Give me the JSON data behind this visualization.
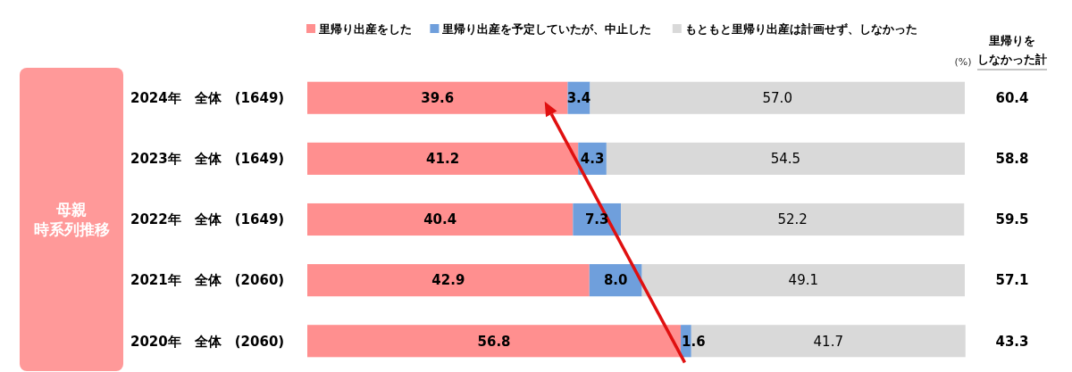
{
  "chart_data": {
    "type": "bar",
    "orientation": "horizontal",
    "stacked": true,
    "legend": "top",
    "tick_labels": "y",
    "xlim": [
      0,
      100
    ],
    "ylabel": "母親時系列推移",
    "categories": [
      "2024年　全体　(1649)",
      "2023年　全体　(1649)",
      "2022年　全体　(1649)",
      "2021年　全体　(2060)",
      "2020年　全体　(2060)"
    ],
    "series": [
      {
        "name": "里帰り出産をした",
        "color": "#ff8f8f",
        "values": [
          39.6,
          41.2,
          40.4,
          42.9,
          56.8
        ],
        "value_labels": [
          "39.6",
          "41.2",
          "40.4",
          "42.9",
          "56.8"
        ]
      },
      {
        "name": "里帰り出産を予定していたが、中止した",
        "color": "#6f9fdc",
        "values": [
          3.4,
          4.3,
          7.3,
          8.0,
          1.6
        ],
        "value_labels": [
          "3.4",
          "4.3",
          "7.3",
          "8.0",
          "1.6"
        ]
      },
      {
        "name": "もともと里帰り出産は計画せず、しなかった",
        "color": "#d9d9d9",
        "values": [
          57.0,
          54.5,
          52.2,
          49.1,
          41.7
        ],
        "value_labels": [
          "57.0",
          "54.5",
          "52.2",
          "49.1",
          "41.7"
        ]
      }
    ],
    "annotations": [
      "(%)",
      "里帰りをしなかった計",
      "60.4",
      "58.8",
      "59.5",
      "57.1",
      "43.3"
    ]
  }
}
